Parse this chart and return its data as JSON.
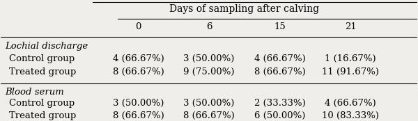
{
  "title": "Days of sampling after calving",
  "col_headers": [
    "0",
    "6",
    "15",
    "21"
  ],
  "sections": [
    {
      "section_label": "Lochial discharge",
      "rows": [
        {
          "label": "Control group",
          "values": [
            "4 (66.67%)",
            "3 (50.00%)",
            "4 (66.67%)",
            "1 (16.67%)"
          ]
        },
        {
          "label": "Treated group",
          "values": [
            "8 (66.67%)",
            "9 (75.00%)",
            "8 (66.67%)",
            "11 (91.67%)"
          ]
        }
      ]
    },
    {
      "section_label": "Blood serum",
      "rows": [
        {
          "label": "Control group",
          "values": [
            "3 (50.00%)",
            "3 (50.00%)",
            "2 (33.33%)",
            "4 (66.67%)"
          ]
        },
        {
          "label": "Treated group",
          "values": [
            "8 (66.67%)",
            "8 (66.67%)",
            "6 (50.00%)",
            "10 (83.33%)"
          ]
        }
      ]
    }
  ],
  "bg_color": "#f0eeea",
  "text_color": "#000000",
  "font_size": 9.5,
  "title_font_size": 10
}
